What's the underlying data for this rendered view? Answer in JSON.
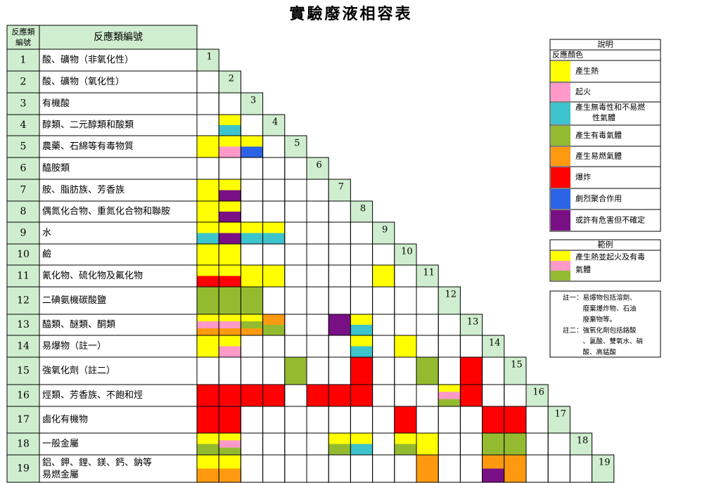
{
  "title": "實驗廢液相容表",
  "header": {
    "id_label_line1": "反應類",
    "id_label_line2": "編號",
    "name_label": "反應類編號"
  },
  "colors": {
    "Y": "#ffff00",
    "P": "#ff9ac8",
    "C": "#3cc3cc",
    "G": "#94bb30",
    "O": "#ff9a10",
    "R": "#ff0000",
    "B": "#2b64e6",
    "V": "#7a1086",
    "header": "#cfeecf"
  },
  "rows": [
    {
      "id": "1",
      "name": "酸、礦物（非氧化性）"
    },
    {
      "id": "2",
      "name": "酸、礦物（氧化性）"
    },
    {
      "id": "3",
      "name": "有機酸"
    },
    {
      "id": "4",
      "name": "醇類、二元醇類和酸類"
    },
    {
      "id": "5",
      "name": "農藥、石綿等有毒物質"
    },
    {
      "id": "6",
      "name": "醯胺類"
    },
    {
      "id": "7",
      "name": "胺、脂肪族、芳香族"
    },
    {
      "id": "8",
      "name": "偶氮化合物、重氮化合物和聯胺"
    },
    {
      "id": "9",
      "name": "水"
    },
    {
      "id": "10",
      "name": "鹼"
    },
    {
      "id": "11",
      "name": "氰化物、硫化物及氟化物"
    },
    {
      "id": "12",
      "name": "二碘氨機碳酸鹽"
    },
    {
      "id": "13",
      "name": "醯類、醚類、酮類"
    },
    {
      "id": "14",
      "name": "易爆物（註一）"
    },
    {
      "id": "15",
      "name": "強氧化劑（註二）"
    },
    {
      "id": "16",
      "name": "烴類、芳香族、不飽和烴"
    },
    {
      "id": "17",
      "name": "鹵化有機物"
    },
    {
      "id": "18",
      "name": "一般金屬"
    },
    {
      "id": "19",
      "name": "鋁、鉀、鋰、鎂、鈣、鈉等",
      "name2": "易燃金屬"
    }
  ],
  "matrix": [
    {
      "row": 3,
      "col": 1,
      "codes": [
        "Y",
        "C"
      ]
    },
    {
      "row": 4,
      "col": 0,
      "codes": [
        "Y"
      ]
    },
    {
      "row": 4,
      "col": 1,
      "codes": [
        "Y",
        "P"
      ]
    },
    {
      "row": 4,
      "col": 2,
      "codes": [
        "Y",
        "B"
      ]
    },
    {
      "row": 6,
      "col": 0,
      "codes": [
        "Y"
      ]
    },
    {
      "row": 6,
      "col": 1,
      "codes": [
        "Y",
        "V"
      ]
    },
    {
      "row": 7,
      "col": 0,
      "codes": [
        "Y"
      ]
    },
    {
      "row": 7,
      "col": 1,
      "codes": [
        "Y",
        "V"
      ]
    },
    {
      "row": 8,
      "col": 0,
      "codes": [
        "Y",
        "C"
      ]
    },
    {
      "row": 8,
      "col": 1,
      "codes": [
        "Y",
        "V"
      ]
    },
    {
      "row": 8,
      "col": 2,
      "codes": [
        "Y",
        "C"
      ]
    },
    {
      "row": 8,
      "col": 3,
      "codes": [
        "Y",
        "C"
      ]
    },
    {
      "row": 9,
      "col": 0,
      "codes": [
        "Y"
      ]
    },
    {
      "row": 9,
      "col": 1,
      "codes": [
        "Y"
      ]
    },
    {
      "row": 10,
      "col": 0,
      "codes": [
        "Y",
        "R"
      ]
    },
    {
      "row": 10,
      "col": 1,
      "codes": [
        "Y",
        "R"
      ]
    },
    {
      "row": 10,
      "col": 2,
      "codes": [
        "Y"
      ]
    },
    {
      "row": 10,
      "col": 3,
      "codes": [
        "Y"
      ]
    },
    {
      "row": 10,
      "col": 8,
      "codes": [
        "Y"
      ]
    },
    {
      "row": 11,
      "col": 0,
      "codes": [
        "G"
      ]
    },
    {
      "row": 11,
      "col": 1,
      "codes": [
        "G"
      ]
    },
    {
      "row": 11,
      "col": 2,
      "codes": [
        "G"
      ]
    },
    {
      "row": 12,
      "col": 0,
      "codes": [
        "Y",
        "P",
        "O"
      ]
    },
    {
      "row": 12,
      "col": 1,
      "codes": [
        "Y",
        "P",
        "O"
      ]
    },
    {
      "row": 12,
      "col": 2,
      "codes": [
        "Y",
        "G",
        "O"
      ]
    },
    {
      "row": 12,
      "col": 3,
      "codes": [
        "O",
        "G"
      ]
    },
    {
      "row": 12,
      "col": 6,
      "codes": [
        "V"
      ]
    },
    {
      "row": 12,
      "col": 7,
      "codes": [
        "Y",
        "C"
      ]
    },
    {
      "row": 13,
      "col": 0,
      "codes": [
        "Y"
      ]
    },
    {
      "row": 13,
      "col": 1,
      "codes": [
        "Y",
        "P"
      ]
    },
    {
      "row": 13,
      "col": 7,
      "codes": [
        "Y",
        "C"
      ]
    },
    {
      "row": 13,
      "col": 9,
      "codes": [
        "Y"
      ]
    },
    {
      "row": 14,
      "col": 4,
      "codes": [
        "G"
      ]
    },
    {
      "row": 14,
      "col": 7,
      "codes": [
        "R"
      ]
    },
    {
      "row": 14,
      "col": 10,
      "codes": [
        "G"
      ]
    },
    {
      "row": 14,
      "col": 12,
      "codes": [
        "R"
      ]
    },
    {
      "row": 15,
      "col": 0,
      "codes": [
        "R"
      ]
    },
    {
      "row": 15,
      "col": 1,
      "codes": [
        "R"
      ]
    },
    {
      "row": 15,
      "col": 2,
      "codes": [
        "R"
      ]
    },
    {
      "row": 15,
      "col": 3,
      "codes": [
        "R"
      ]
    },
    {
      "row": 15,
      "col": 5,
      "codes": [
        "R"
      ]
    },
    {
      "row": 15,
      "col": 6,
      "codes": [
        "R"
      ]
    },
    {
      "row": 15,
      "col": 7,
      "codes": [
        "R"
      ]
    },
    {
      "row": 15,
      "col": 11,
      "codes": [
        "Y",
        "P",
        "G"
      ]
    },
    {
      "row": 15,
      "col": 12,
      "codes": [
        "R"
      ]
    },
    {
      "row": 16,
      "col": 0,
      "codes": [
        "R"
      ]
    },
    {
      "row": 16,
      "col": 1,
      "codes": [
        "R"
      ]
    },
    {
      "row": 16,
      "col": 9,
      "codes": [
        "R"
      ]
    },
    {
      "row": 16,
      "col": 13,
      "codes": [
        "R"
      ]
    },
    {
      "row": 16,
      "col": 14,
      "codes": [
        "R"
      ]
    },
    {
      "row": 17,
      "col": 0,
      "codes": [
        "Y",
        "G"
      ]
    },
    {
      "row": 17,
      "col": 1,
      "codes": [
        "Y",
        "P",
        "G"
      ]
    },
    {
      "row": 17,
      "col": 6,
      "codes": [
        "Y",
        "G"
      ]
    },
    {
      "row": 17,
      "col": 7,
      "codes": [
        "Y",
        "C"
      ]
    },
    {
      "row": 17,
      "col": 9,
      "codes": [
        "Y",
        "G"
      ]
    },
    {
      "row": 17,
      "col": 10,
      "codes": [
        "Y"
      ]
    },
    {
      "row": 17,
      "col": 13,
      "codes": [
        "G"
      ]
    },
    {
      "row": 17,
      "col": 14,
      "codes": [
        "G"
      ]
    },
    {
      "row": 18,
      "col": 0,
      "codes": [
        "Y",
        "O"
      ]
    },
    {
      "row": 18,
      "col": 1,
      "codes": [
        "Y",
        "O"
      ]
    },
    {
      "row": 18,
      "col": 10,
      "codes": [
        "O"
      ]
    },
    {
      "row": 18,
      "col": 13,
      "codes": [
        "O",
        "V"
      ]
    },
    {
      "row": 18,
      "col": 14,
      "codes": [
        "O"
      ]
    },
    {
      "row": 19,
      "col": 0,
      "codes": [
        "R"
      ]
    },
    {
      "row": 19,
      "col": 1,
      "codes": [
        "R"
      ]
    },
    {
      "row": 19,
      "col": 2,
      "codes": [
        "R"
      ]
    },
    {
      "row": 19,
      "col": 3,
      "codes": [
        "R"
      ]
    },
    {
      "row": 19,
      "col": 4,
      "codes": [
        "G"
      ]
    },
    {
      "row": 19,
      "col": 6,
      "codes": [
        "Y"
      ]
    },
    {
      "row": 19,
      "col": 7,
      "codes": [
        "R"
      ]
    },
    {
      "row": 19,
      "col": 8,
      "codes": [
        "R"
      ]
    },
    {
      "row": 19,
      "col": 9,
      "codes": [
        "R"
      ]
    },
    {
      "row": 19,
      "col": 10,
      "codes": [
        "R"
      ]
    },
    {
      "row": 19,
      "col": 11,
      "codes": [
        "Y"
      ]
    },
    {
      "row": 19,
      "col": 12,
      "codes": [
        "R",
        "C"
      ]
    },
    {
      "row": 19,
      "col": 13,
      "codes": [
        "R"
      ]
    },
    {
      "row": 19,
      "col": 14,
      "codes": [
        "R"
      ]
    },
    {
      "row": 19,
      "col": 15,
      "codes": [
        "R"
      ]
    }
  ],
  "legend": {
    "title": "說明",
    "subtitle": "反應顏色",
    "items": [
      {
        "code": "Y",
        "text": "產生熱"
      },
      {
        "code": "P",
        "text": "起火"
      },
      {
        "code": "C",
        "text": "產生無毒性和不易燃",
        "text2": "性氣體"
      },
      {
        "code": "G",
        "text": "產生有毒氣體"
      },
      {
        "code": "O",
        "text": "產生易燃氣體"
      },
      {
        "code": "R",
        "text": "爆炸"
      },
      {
        "code": "B",
        "text": "劇烈聚合作用"
      },
      {
        "code": "V",
        "text": "或許有危害但不確定"
      }
    ]
  },
  "example": {
    "title": "範例",
    "codes": [
      "Y",
      "P",
      "G"
    ],
    "text": "產生熱並起火及有毒",
    "text2": "氣體"
  },
  "notes": [
    "註一：易爆物包括溶劑、",
    "　　　廢棄爆炸物、石油",
    "　　　廢棄物等。",
    "註二：強氧化劑包括鉻酸",
    "　　　、氯酸、雙氧水、硝",
    "　　　酸、高錳酸"
  ]
}
